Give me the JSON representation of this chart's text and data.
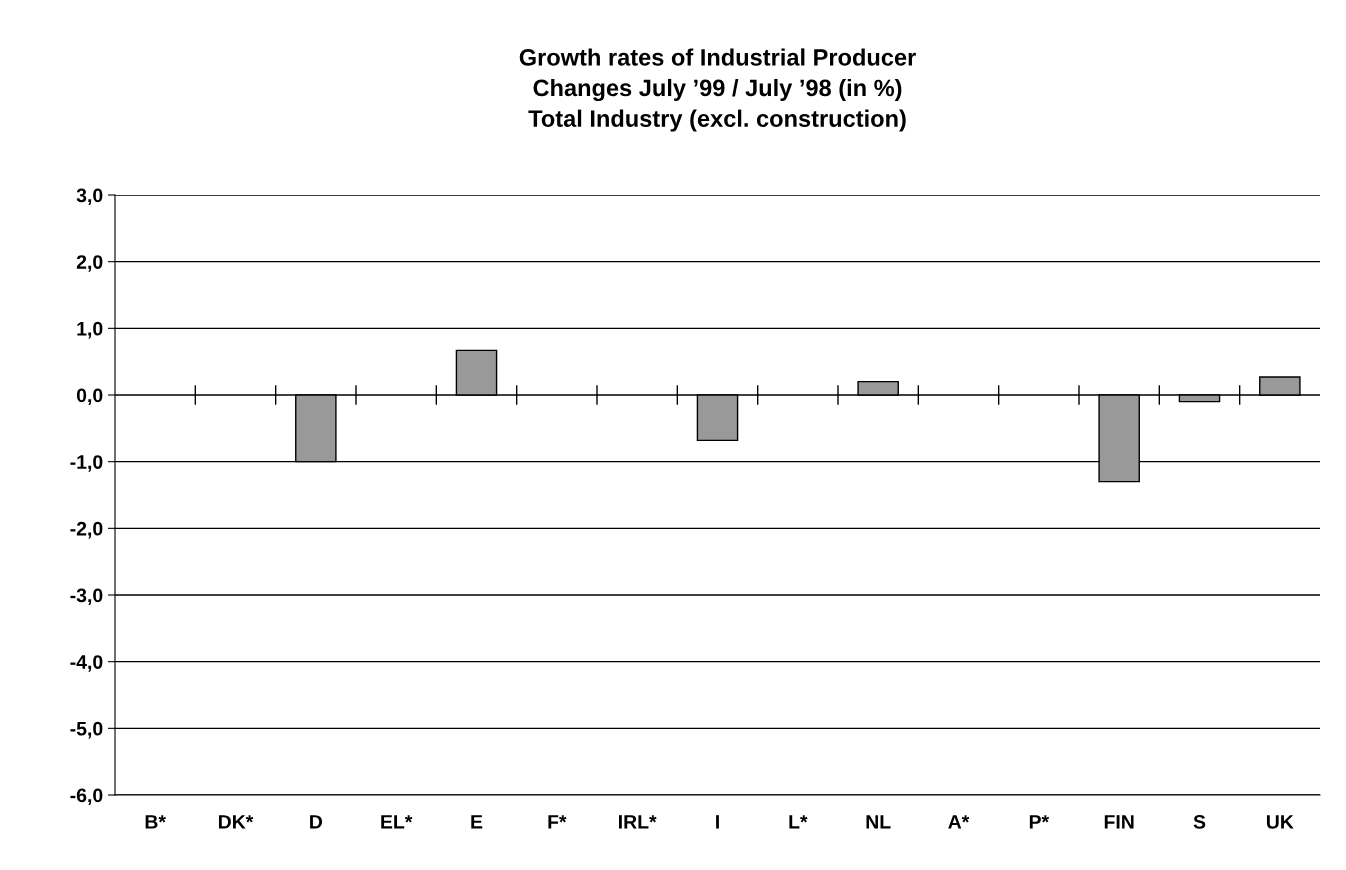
{
  "chart_data": {
    "type": "bar",
    "title": "Growth rates of Industrial Producer\nChanges July ’99 / July ’98 (in %)\nTotal Industry (excl. construction)",
    "categories": [
      "B*",
      "DK*",
      "D",
      "EL*",
      "E",
      "F*",
      "IRL*",
      "I",
      "L*",
      "NL",
      "A*",
      "P*",
      "FIN",
      "S",
      "UK"
    ],
    "values": [
      null,
      null,
      -1.0,
      null,
      0.67,
      null,
      null,
      -0.68,
      null,
      0.2,
      null,
      null,
      -1.3,
      -0.1,
      0.27
    ],
    "color": "#999999",
    "ylim": [
      -6,
      3
    ],
    "yticks": [
      {
        "value": -6,
        "label": "-6,0"
      },
      {
        "value": -5,
        "label": "-5,0"
      },
      {
        "value": -4,
        "label": "-4,0"
      },
      {
        "value": -3,
        "label": "-3,0"
      },
      {
        "value": -2,
        "label": "-2,0"
      },
      {
        "value": -1,
        "label": "-1,0"
      },
      {
        "value": 0,
        "label": "0,0"
      },
      {
        "value": 1,
        "label": "1,0"
      },
      {
        "value": 2,
        "label": "2,0"
      },
      {
        "value": 3,
        "label": "3,0"
      }
    ],
    "grid": "y",
    "legend": false
  }
}
